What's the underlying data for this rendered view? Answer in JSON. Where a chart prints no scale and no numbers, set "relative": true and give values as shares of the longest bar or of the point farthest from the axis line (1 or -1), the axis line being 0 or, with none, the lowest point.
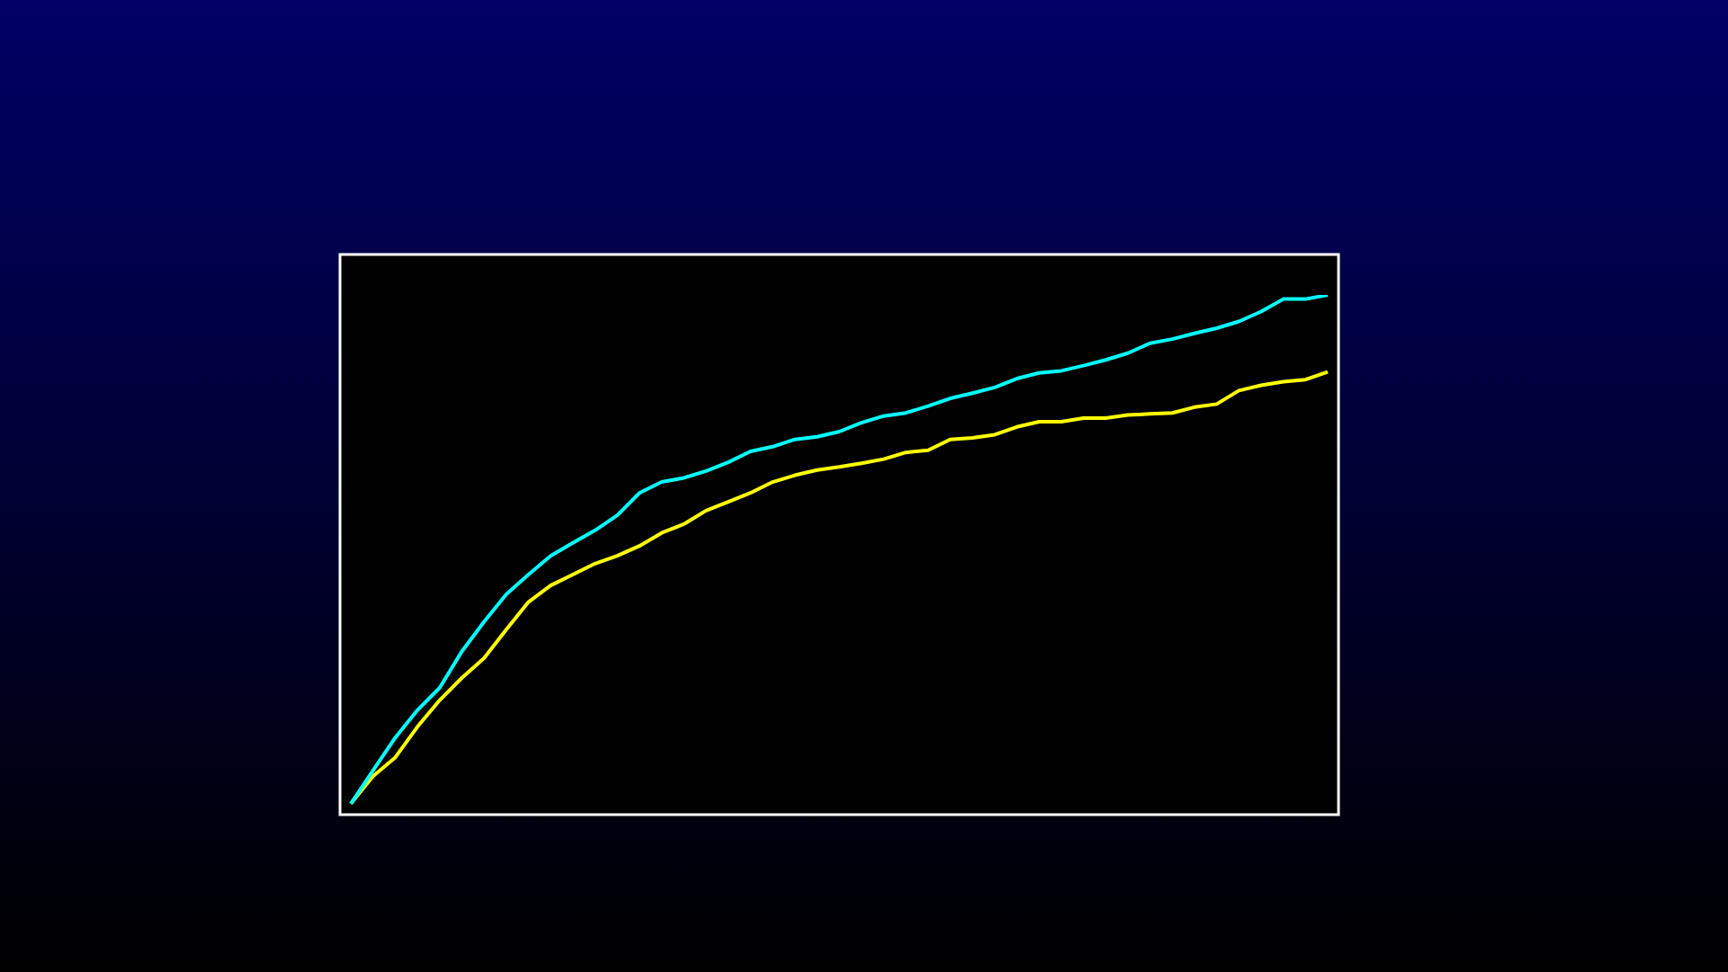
{
  "chart_data": {
    "type": "line",
    "relative": true,
    "legend": false,
    "marker": "none",
    "line_style": "solid",
    "categories": [
      null,
      null,
      null,
      null,
      null,
      null,
      null,
      null,
      null,
      null,
      null,
      null,
      null,
      null,
      null,
      null,
      null,
      null,
      null,
      null,
      null,
      null,
      null,
      null,
      null,
      null,
      null,
      null,
      null,
      null,
      null,
      null,
      null,
      null,
      null,
      null,
      null,
      null,
      null,
      null,
      null,
      null,
      null,
      null,
      null
    ],
    "series": [
      {
        "color": "#00ffff",
        "values": [
          0.021,
          0.085,
          0.148,
          0.201,
          0.244,
          0.314,
          0.371,
          0.424,
          0.462,
          0.498,
          0.523,
          0.547,
          0.576,
          0.619,
          0.64,
          0.648,
          0.661,
          0.678,
          0.699,
          0.708,
          0.722,
          0.727,
          0.737,
          0.754,
          0.767,
          0.773,
          0.786,
          0.801,
          0.811,
          0.822,
          0.839,
          0.85,
          0.854,
          0.864,
          0.875,
          0.888,
          0.907,
          0.915,
          0.926,
          0.936,
          0.949,
          0.968,
          0.992,
          0.992,
          1
        ]
      },
      {
        "color": "#ffff00",
        "values": [
          0.021,
          0.074,
          0.11,
          0.169,
          0.22,
          0.263,
          0.301,
          0.356,
          0.409,
          0.441,
          0.462,
          0.483,
          0.498,
          0.517,
          0.542,
          0.559,
          0.585,
          0.602,
          0.619,
          0.64,
          0.653,
          0.663,
          0.669,
          0.676,
          0.684,
          0.697,
          0.701,
          0.722,
          0.725,
          0.731,
          0.746,
          0.756,
          0.756,
          0.763,
          0.763,
          0.769,
          0.771,
          0.773,
          0.784,
          0.79,
          0.816,
          0.826,
          0.833,
          0.837,
          0.852
        ]
      }
    ]
  }
}
